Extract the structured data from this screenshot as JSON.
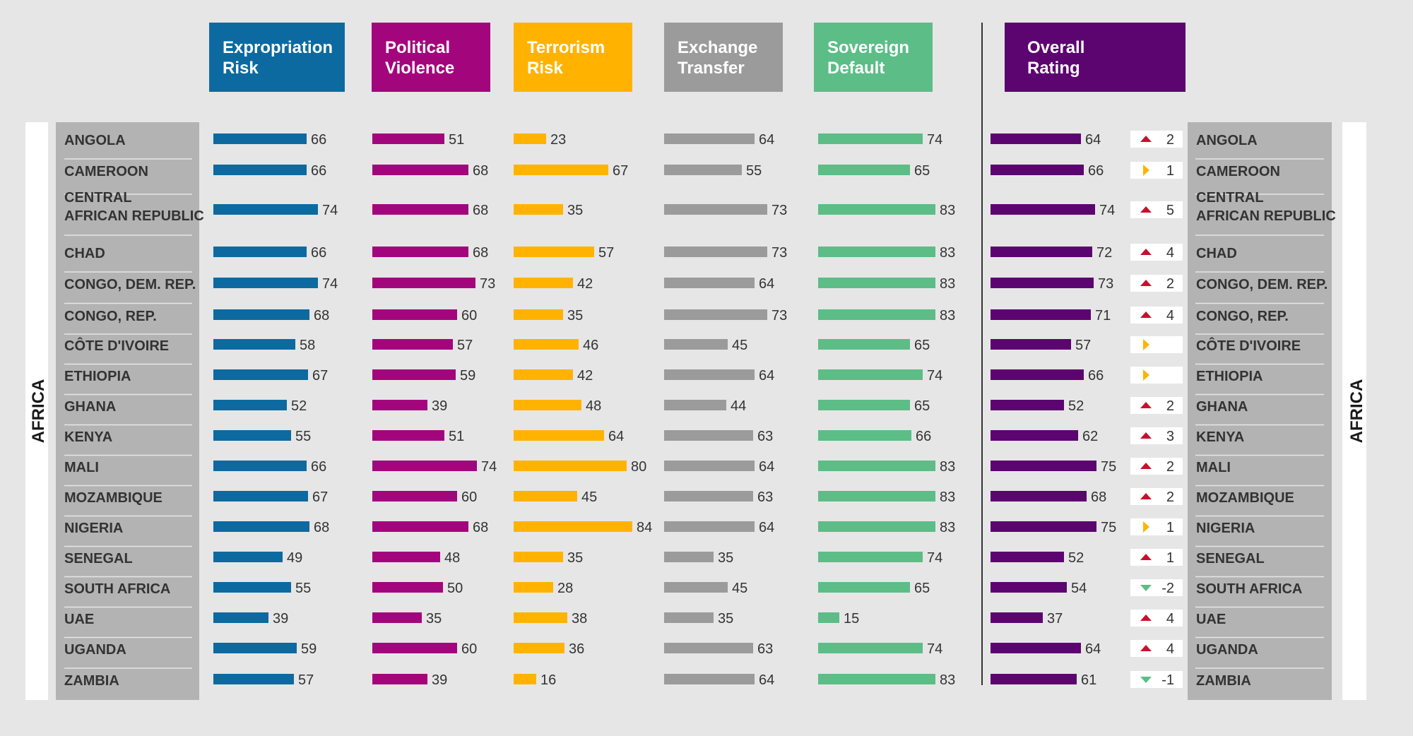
{
  "chart_data": {
    "type": "bar",
    "side_label": "AFRICA",
    "columns": [
      {
        "key": "expropriation",
        "title_lines": [
          "Expropriation",
          "Risk"
        ],
        "color": "#0c6aa0"
      },
      {
        "key": "political",
        "title_lines": [
          "Political",
          "Violence"
        ],
        "color": "#a3067c"
      },
      {
        "key": "terrorism",
        "title_lines": [
          "Terrorism",
          "Risk"
        ],
        "color": "#ffb300",
        "text_color": "#1a1a1a"
      },
      {
        "key": "exchange",
        "title_lines": [
          "Exchange",
          "Transfer"
        ],
        "color": "#9b9b9b"
      },
      {
        "key": "sovereign",
        "title_lines": [
          "Sovereign",
          "Default"
        ],
        "color": "#5cbd86"
      },
      {
        "key": "overall",
        "title_lines": [
          "Overall",
          "Rating"
        ],
        "color": "#5c0470"
      }
    ],
    "rows": [
      {
        "country": [
          "ANGOLA"
        ],
        "values": [
          66,
          51,
          23,
          64,
          74,
          64
        ],
        "change": {
          "dir": "up",
          "text": "2"
        }
      },
      {
        "country": [
          "CAMEROON"
        ],
        "values": [
          66,
          68,
          67,
          55,
          65,
          66
        ],
        "change": {
          "dir": "flat",
          "text": "1"
        }
      },
      {
        "country": [
          "CENTRAL",
          "AFRICAN REPUBLIC"
        ],
        "values": [
          74,
          68,
          35,
          73,
          83,
          74
        ],
        "change": {
          "dir": "up",
          "text": "5"
        }
      },
      {
        "country": [
          "CHAD"
        ],
        "values": [
          66,
          68,
          57,
          73,
          83,
          72
        ],
        "change": {
          "dir": "up",
          "text": "4"
        }
      },
      {
        "country": [
          "CONGO, DEM. REP."
        ],
        "values": [
          74,
          73,
          42,
          64,
          83,
          73
        ],
        "change": {
          "dir": "up",
          "text": "2"
        }
      },
      {
        "country": [
          "CONGO, REP."
        ],
        "values": [
          68,
          60,
          35,
          73,
          83,
          71
        ],
        "change": {
          "dir": "up",
          "text": "4"
        }
      },
      {
        "country": [
          "CÔTE D'IVOIRE"
        ],
        "values": [
          58,
          57,
          46,
          45,
          65,
          57
        ],
        "change": {
          "dir": "flat",
          "text": ""
        }
      },
      {
        "country": [
          "ETHIOPIA"
        ],
        "values": [
          67,
          59,
          42,
          64,
          74,
          66
        ],
        "change": {
          "dir": "flat",
          "text": ""
        }
      },
      {
        "country": [
          "GHANA"
        ],
        "values": [
          52,
          39,
          48,
          44,
          65,
          52
        ],
        "change": {
          "dir": "up",
          "text": "2"
        }
      },
      {
        "country": [
          "KENYA"
        ],
        "values": [
          55,
          51,
          64,
          63,
          66,
          62
        ],
        "change": {
          "dir": "up",
          "text": "3"
        }
      },
      {
        "country": [
          "MALI"
        ],
        "values": [
          66,
          74,
          80,
          64,
          83,
          75
        ],
        "change": {
          "dir": "up",
          "text": "2"
        }
      },
      {
        "country": [
          "MOZAMBIQUE"
        ],
        "values": [
          67,
          60,
          45,
          63,
          83,
          68
        ],
        "change": {
          "dir": "up",
          "text": "2"
        }
      },
      {
        "country": [
          "NIGERIA"
        ],
        "values": [
          68,
          68,
          84,
          64,
          83,
          75
        ],
        "change": {
          "dir": "flat",
          "text": "1"
        }
      },
      {
        "country": [
          "SENEGAL"
        ],
        "values": [
          49,
          48,
          35,
          35,
          74,
          52
        ],
        "change": {
          "dir": "up",
          "text": "1"
        }
      },
      {
        "country": [
          "SOUTH AFRICA"
        ],
        "values": [
          55,
          50,
          28,
          45,
          65,
          54
        ],
        "change": {
          "dir": "down",
          "text": "-2"
        }
      },
      {
        "country": [
          "UAE"
        ],
        "values": [
          39,
          35,
          38,
          35,
          15,
          37
        ],
        "change": {
          "dir": "up",
          "text": "4"
        }
      },
      {
        "country": [
          "UGANDA"
        ],
        "values": [
          59,
          60,
          36,
          63,
          74,
          64
        ],
        "change": {
          "dir": "up",
          "text": "4"
        }
      },
      {
        "country": [
          "ZAMBIA"
        ],
        "values": [
          57,
          39,
          16,
          64,
          83,
          61
        ],
        "change": {
          "dir": "down",
          "text": "-1"
        }
      }
    ],
    "change_colors": {
      "up": "#c8102e",
      "down": "#5cbd86",
      "flat": "#ffb300"
    }
  },
  "colors": {
    "background": "#e6e6e6",
    "row_panel": "#b3b3b3",
    "divider": "#333333"
  }
}
